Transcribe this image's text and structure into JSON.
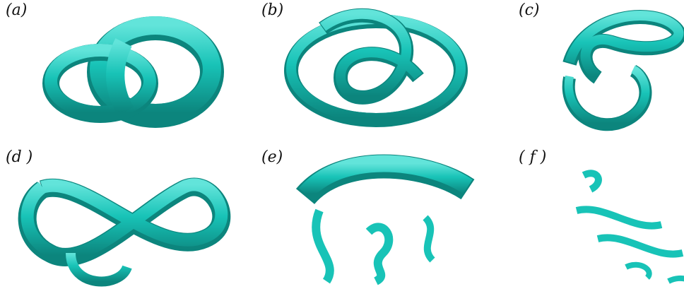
{
  "figure": {
    "tube_color": "#18c3b7",
    "tube_shadow_color": "#0c857d",
    "tube_highlight_color": "#62e4da",
    "panels": [
      {
        "label": "(a)"
      },
      {
        "label": "(b)"
      },
      {
        "label": "(c)"
      },
      {
        "label": "(d )"
      },
      {
        "label": "(e)"
      },
      {
        "label": "( f )"
      }
    ]
  }
}
